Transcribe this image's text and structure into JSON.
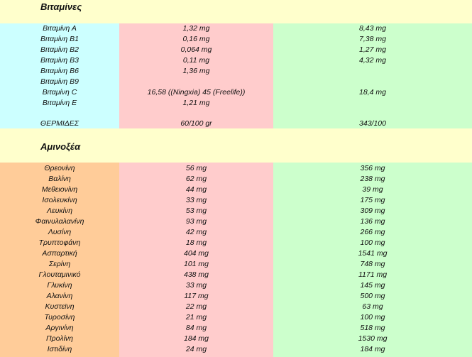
{
  "vitamins": {
    "title": "Βιταμίνες",
    "rows": [
      {
        "name": "Βιταμίνη Α",
        "v1": "1,32 mg",
        "v2": "8,43 mg"
      },
      {
        "name": "Βιταμίνη Β1",
        "v1": "0,16 mg",
        "v2": "7,38 mg"
      },
      {
        "name": "Βιταμίνη Β2",
        "v1": "0,064 mg",
        "v2": "1,27 mg"
      },
      {
        "name": "Βιταμίνη Β3",
        "v1": "0,11 mg",
        "v2": "4,32 mg"
      },
      {
        "name": "Βιταμίνη Β6",
        "v1": "1,36 mg",
        "v2": ""
      },
      {
        "name": "Βιταμίνη Β9",
        "v1": "",
        "v2": ""
      },
      {
        "name": "Βιταμίνη C",
        "v1": "16,58 ((Ningxia) 45 (Freelife))",
        "v2": "18,4 mg"
      },
      {
        "name": "Βιταμίνη Ε",
        "v1": "1,21 mg",
        "v2": ""
      }
    ],
    "calories": {
      "name": "ΘΕΡΜΙΔΕΣ",
      "v1": "60/100 gr",
      "v2": "343/100"
    }
  },
  "amino_acids": {
    "title": "Αμινοξέα",
    "rows": [
      {
        "name": "Θρεονίνη",
        "v1": "56 mg",
        "v2": "356 mg"
      },
      {
        "name": "Βαλίνη",
        "v1": "62 mg",
        "v2": "238 mg"
      },
      {
        "name": "Μεθειονίνη",
        "v1": "44 mg",
        "v2": "39 mg"
      },
      {
        "name": "Ισολευκίνη",
        "v1": "33 mg",
        "v2": "175 mg"
      },
      {
        "name": "Λευκίνη",
        "v1": "53 mg",
        "v2": "309 mg"
      },
      {
        "name": "Φαινυλαλανίνη",
        "v1": "93 mg",
        "v2": "136 mg"
      },
      {
        "name": "Λυσίνη",
        "v1": "42 mg",
        "v2": "266 mg"
      },
      {
        "name": "Τρυπτοφάνη",
        "v1": "18 mg",
        "v2": "100 mg"
      },
      {
        "name": "Ασπαρτική",
        "v1": "404 mg",
        "v2": "1541 mg"
      },
      {
        "name": "Σερίνη",
        "v1": "101 mg",
        "v2": "748 mg"
      },
      {
        "name": "Γλουταμινικό",
        "v1": "438 mg",
        "v2": "1171 mg"
      },
      {
        "name": "Γλυκίνη",
        "v1": "33 mg",
        "v2": "145 mg"
      },
      {
        "name": "Αλανίνη",
        "v1": "117 mg",
        "v2": "500 mg"
      },
      {
        "name": "Κυστεϊνη",
        "v1": "22 mg",
        "v2": "63 mg"
      },
      {
        "name": "Τυροσίνη",
        "v1": "21 mg",
        "v2": "100 mg"
      },
      {
        "name": "Αργινίνη",
        "v1": "84 mg",
        "v2": "518 mg"
      },
      {
        "name": "Προλίνη",
        "v1": "184 mg",
        "v2": "1530 mg"
      },
      {
        "name": "Ιστιδίνη",
        "v1": "24 mg",
        "v2": "184 mg"
      }
    ]
  }
}
